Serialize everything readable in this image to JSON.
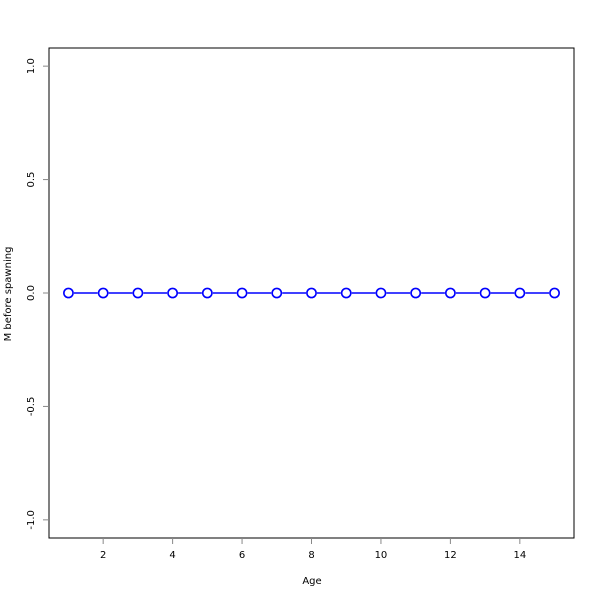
{
  "chart_data": {
    "type": "line",
    "title": "",
    "xlabel": "Age",
    "ylabel": "M before spawning",
    "x": [
      1,
      2,
      3,
      4,
      5,
      6,
      7,
      8,
      9,
      10,
      11,
      12,
      13,
      14,
      15
    ],
    "series": [
      {
        "values": [
          0,
          0,
          0,
          0,
          0,
          0,
          0,
          0,
          0,
          0,
          0,
          0,
          0,
          0,
          0
        ],
        "color": "#0000ff",
        "marker": "open-circle"
      }
    ],
    "xlim": [
      0.44,
      15.56
    ],
    "ylim": [
      -1.08,
      1.08
    ],
    "xticks": [
      2,
      4,
      6,
      8,
      10,
      12,
      14
    ],
    "xtick_labels": [
      "2",
      "4",
      "6",
      "8",
      "10",
      "12",
      "14"
    ],
    "yticks": [
      -1.0,
      -0.5,
      0.0,
      0.5,
      1.0
    ],
    "ytick_labels": [
      "-1.0",
      "-0.5",
      "0.0",
      "0.5",
      "1.0"
    ],
    "grid": false,
    "legend": "none"
  }
}
